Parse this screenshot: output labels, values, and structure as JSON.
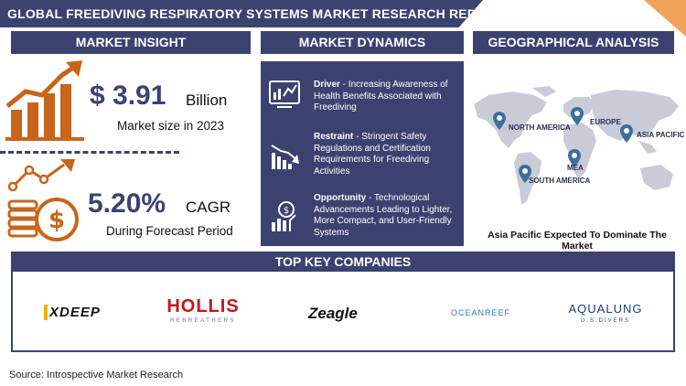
{
  "title": "GLOBAL FREEDIVING RESPIRATORY SYSTEMS MARKET RESEARCH REPORT",
  "sections": {
    "insight": "MARKET INSIGHT",
    "dynamics": "MARKET DYNAMICS",
    "geo": "GEOGRAPHICAL ANALYSIS",
    "companies": "TOP KEY COMPANIES"
  },
  "insight": {
    "market_size": "$ 3.91",
    "market_unit": "Billion",
    "market_caption": "Market size in 2023",
    "cagr": "5.20%",
    "cagr_unit": "CAGR",
    "cagr_caption": "During Forecast Period"
  },
  "dynamics": [
    {
      "label": "Driver",
      "text": " - Increasing Awareness of Health Benefits Associated with Freediving",
      "icon": "analytics-icon"
    },
    {
      "label": "Restraint",
      "text": " - Stringent Safety Regulations and Certification Requirements for Freediving Activities",
      "icon": "declining-bars-icon"
    },
    {
      "label": "Opportunity",
      "text": " - Technological Advancements Leading to Lighter, More Compact, and User-Friendly Systems",
      "icon": "growth-coin-icon"
    }
  ],
  "geo": {
    "regions": [
      "NORTH AMERICA",
      "EUROPE",
      "ASIA PACIFIC",
      "MEA",
      "SOUTH AMERICA"
    ],
    "footnote": "Asia Pacific Expected To Dominate The Market"
  },
  "companies": {
    "xdeep": "XDEEP",
    "hollis": "HOLLIS",
    "hollis_sub": "REBREATHERS",
    "zeagle": "Zeagle",
    "oceanreef": "OCEANREEF",
    "aqualung": "AQUALUNG",
    "aqualung_sub": "U.S.DIVERS"
  },
  "source": "Source: Introspective Market Research",
  "colors": {
    "navy": "#3c4270",
    "orange": "#c8651b",
    "accent": "#f0a25b"
  }
}
